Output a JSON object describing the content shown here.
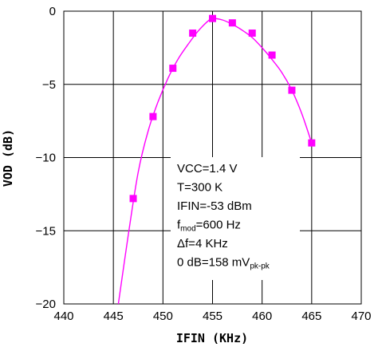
{
  "chart_data": {
    "type": "scatter",
    "title": "",
    "xlabel": "IFIN (KHz)",
    "ylabel": "VOD (dB)",
    "xlim": [
      440,
      470
    ],
    "ylim": [
      -20,
      0
    ],
    "x_ticks": [
      440,
      445,
      450,
      455,
      460,
      465,
      470
    ],
    "y_ticks": [
      0,
      -5,
      -10,
      -15,
      -20
    ],
    "x_tick_labels": [
      "440",
      "445",
      "450",
      "455",
      "460",
      "465",
      "470"
    ],
    "y_tick_labels": [
      "0",
      "-5",
      "-10",
      "-15",
      "-20"
    ],
    "grid": true,
    "series": [
      {
        "kind": "markers",
        "color": "#ff00ff",
        "x": [
          447,
          449,
          451,
          453,
          455,
          457,
          459,
          461,
          463,
          465
        ],
        "y": [
          -12.8,
          -7.2,
          -3.9,
          -1.5,
          -0.5,
          -0.8,
          -1.5,
          -3.0,
          -5.4,
          -9.0
        ]
      },
      {
        "kind": "line",
        "color": "#ff00ff",
        "x": [
          445.5,
          446.5,
          447.5,
          448.5,
          449.5,
          450.5,
          451.5,
          452.5,
          453.5,
          454.5,
          455.0,
          456.0,
          457.0,
          458.0,
          459.0,
          460.0,
          461.0,
          462.0,
          463.0,
          464.0,
          465.0
        ],
        "y": [
          -20.0,
          -15.3,
          -11.0,
          -8.2,
          -6.2,
          -4.6,
          -3.3,
          -2.3,
          -1.4,
          -0.7,
          -0.5,
          -0.6,
          -0.9,
          -1.3,
          -1.8,
          -2.5,
          -3.3,
          -4.2,
          -5.4,
          -7.0,
          -9.0
        ]
      }
    ],
    "annotations": [
      {
        "parts": [
          {
            "text": "VCC=1.4 V"
          }
        ]
      },
      {
        "parts": [
          {
            "text": "T=300 K"
          }
        ]
      },
      {
        "parts": [
          {
            "text": "IFIN=-53 dBm"
          }
        ]
      },
      {
        "parts": [
          {
            "text": "f"
          },
          {
            "text": "mod",
            "sub": true
          },
          {
            "text": "=600 Hz"
          }
        ]
      },
      {
        "parts": [
          {
            "text": "Δf=4 KHz"
          }
        ]
      },
      {
        "parts": [
          {
            "text": "0 dB=158 mV"
          },
          {
            "text": "pk-pk",
            "sub": true
          }
        ]
      }
    ]
  }
}
